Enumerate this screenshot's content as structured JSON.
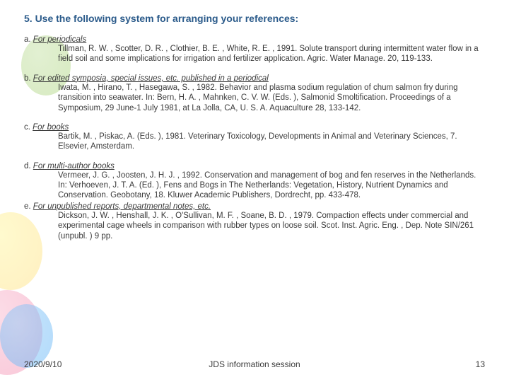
{
  "colors": {
    "title": "#2a5a8a",
    "text": "#3a3a3a",
    "bg": "#ffffff"
  },
  "title": "5. Use the following system for arranging your references:",
  "items": [
    {
      "label": "a.",
      "category": "For periodicals",
      "body": "Tillman, R. W. , Scotter, D. R. , Clothier, B. E. , White, R. E. , 1991. Solute transport during intermittent water flow in a field soil and some implications for irrigation and fertilizer application. Agric. Water Manage. 20, 119-133."
    },
    {
      "label": "b.",
      "category": "For edited symposia, special issues, etc. published in a periodical",
      "body": "Iwata, M. , Hirano, T. , Hasegawa, S. , 1982. Behavior and plasma sodium regulation of chum salmon fry during transition into seawater. In: Bern, H. A. , Mahnken, C. V. W. (Eds. ), Salmonid Smoltification. Proceedings of a Symposium, 29 June-1 July 1981, at La Jolla, CA, U. S. A. Aquaculture 28, 133-142."
    },
    {
      "label": "c.",
      "category": "For books",
      "body": "Bartik, M. , Piskac, A. (Eds. ), 1981. Veterinary Toxicology, Developments in Animal and Veterinary Sciences, 7. Elsevier, Amsterdam."
    },
    {
      "label": "d.",
      "category": "For multi-author books",
      "body": "Vermeer, J. G. , Joosten, J. H. J. , 1992. Conservation and management of bog and fen reserves in the Netherlands. In: Verhoeven, J. T. A. (Ed. ), Fens and Bogs in The Netherlands: Vegetation, History, Nutrient Dynamics and Conservation. Geobotany, 18. Kluwer Academic Publishers, Dordrecht, pp. 433-478."
    },
    {
      "label": "e.",
      "category": "For unpublished reports, departmental notes, etc.",
      "body": "Dickson, J. W. , Henshall, J. K. , O'Sullivan, M. F. , Soane, B. D. , 1979. Compaction effects under commercial and experimental cage wheels in comparison with rubber types on loose soil. Scot. Inst. Agric. Eng. , Dep. Note SIN/261 (unpubl. ) 9 pp."
    }
  ],
  "footer": {
    "date": "2020/9/10",
    "center": "JDS information session",
    "page": "13"
  }
}
